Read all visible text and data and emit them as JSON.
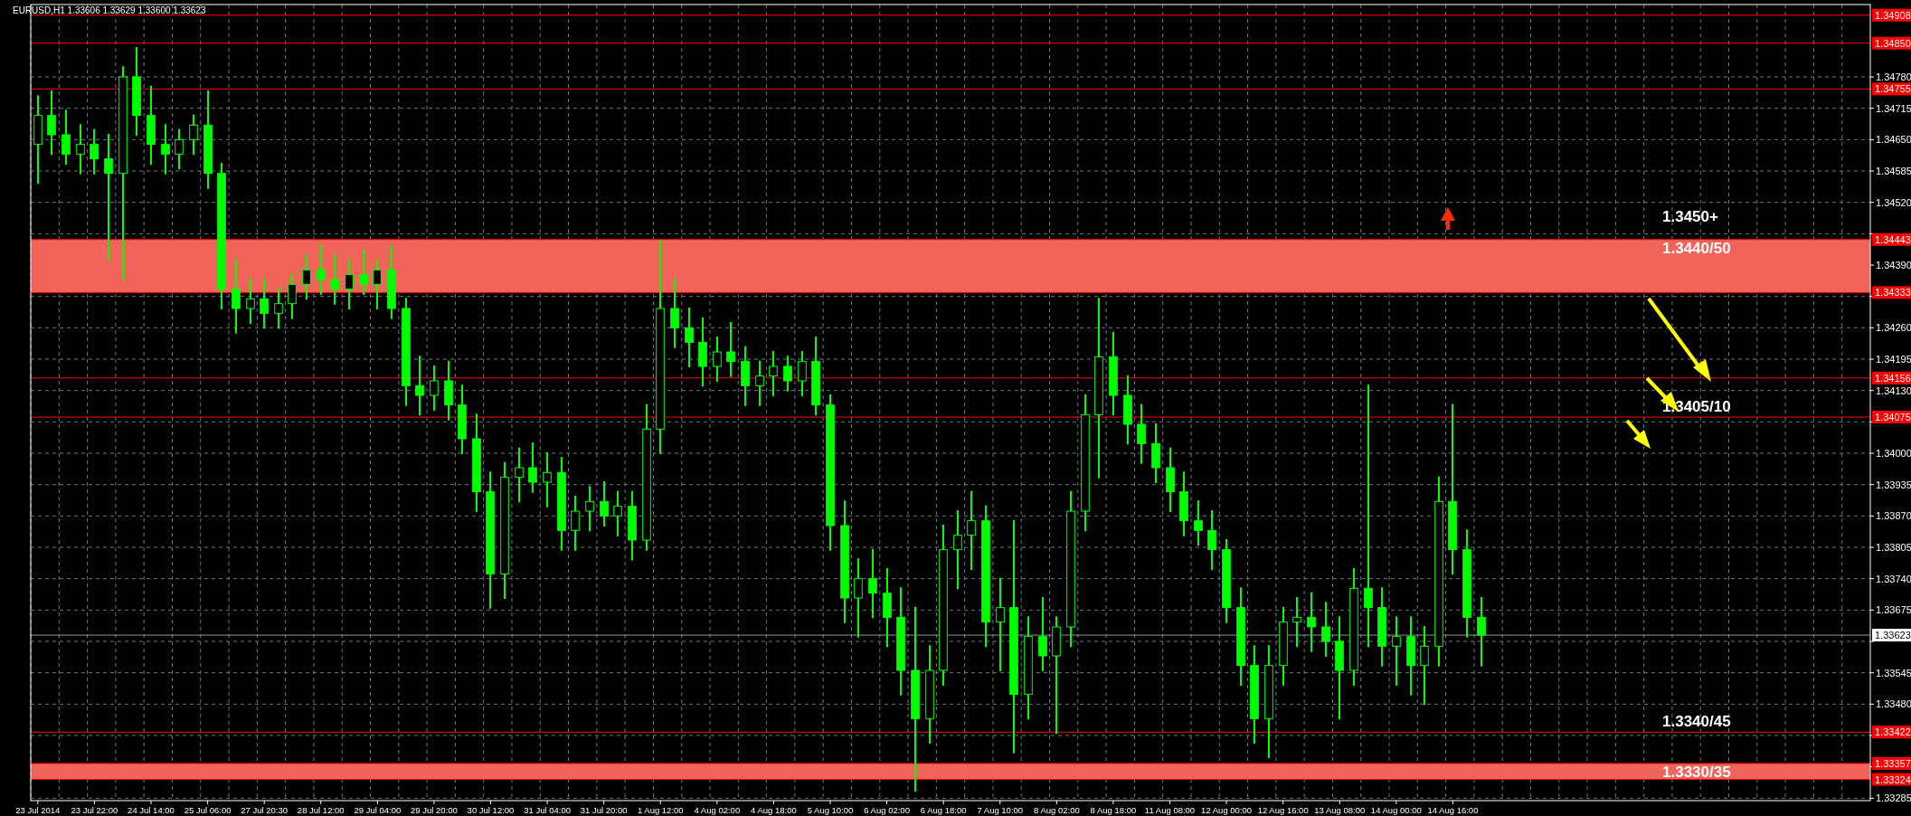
{
  "chart_data": {
    "type": "candlestick",
    "title": "EURUSD,H1  1.33606 1.33629 1.33600 1.33623",
    "categories": [
      "23 Jul 2014",
      null,
      null,
      null,
      "23 Jul 22:00",
      null,
      null,
      null,
      "24 Jul 14:00",
      null,
      null,
      null,
      "25 Jul 06:00",
      null,
      null,
      null,
      "27 Jul 20:30",
      null,
      null,
      null,
      "28 Jul 12:00",
      null,
      null,
      null,
      "29 Jul 04:00",
      null,
      null,
      null,
      "29 Jul 20:00",
      null,
      null,
      null,
      "30 Jul 12:00",
      null,
      null,
      null,
      "31 Jul 04:00",
      null,
      null,
      null,
      "31 Jul 20:00",
      null,
      null,
      null,
      "1 Aug 12:00",
      null,
      null,
      null,
      "4 Aug 02:00",
      null,
      null,
      null,
      "4 Aug 18:00",
      null,
      null,
      null,
      "5 Aug 10:00",
      null,
      null,
      null,
      "6 Aug 02:00",
      null,
      null,
      null,
      "6 Aug 18:00",
      null,
      null,
      null,
      "7 Aug 10:00",
      null,
      null,
      null,
      "8 Aug 02:00",
      null,
      null,
      null,
      "8 Aug 18:00",
      null,
      null,
      null,
      "11 Aug 08:00",
      null,
      null,
      null,
      "12 Aug 00:00",
      null,
      null,
      null,
      "12 Aug 16:00",
      null,
      null,
      null,
      "13 Aug 08:00",
      null,
      null,
      null,
      "14 Aug 00:00",
      null,
      null,
      null,
      "14 Aug 16:00",
      null,
      null,
      null,
      null,
      null,
      null,
      null,
      null,
      null,
      null,
      null,
      null,
      null,
      null,
      null,
      null,
      null,
      null,
      null,
      null,
      null,
      null,
      null,
      null,
      null,
      null,
      null,
      null,
      null
    ],
    "series": [
      {
        "color": "#00ff00",
        "ohlc": [
          [
            1.3464,
            1.3474,
            1.3456,
            1.347
          ],
          [
            1.347,
            1.3475,
            1.3462,
            1.3466
          ],
          [
            1.3466,
            1.3471,
            1.346,
            1.3462
          ],
          [
            1.3462,
            1.3468,
            1.3458,
            1.3464
          ],
          [
            1.3464,
            1.3467,
            1.3458,
            1.3461
          ],
          [
            1.3461,
            1.3466,
            1.344,
            1.3458
          ],
          [
            1.3458,
            1.348,
            1.3436,
            1.3478
          ],
          [
            1.3478,
            1.3484,
            1.3466,
            1.347
          ],
          [
            1.347,
            1.3476,
            1.346,
            1.3464
          ],
          [
            1.3464,
            1.3468,
            1.3458,
            1.3462
          ],
          [
            1.3462,
            1.3467,
            1.3459,
            1.3465
          ],
          [
            1.3465,
            1.347,
            1.3462,
            1.3468
          ],
          [
            1.3468,
            1.3475,
            1.3455,
            1.3458
          ],
          [
            1.3458,
            1.346,
            1.343,
            1.3434
          ],
          [
            1.3434,
            1.344,
            1.3425,
            1.343
          ],
          [
            1.343,
            1.3436,
            1.3427,
            1.3432
          ],
          [
            1.3432,
            1.3436,
            1.3426,
            1.3429
          ],
          [
            1.3429,
            1.3434,
            1.3426,
            1.3431
          ],
          [
            1.3431,
            1.3437,
            1.3428,
            1.3435
          ],
          [
            1.3435,
            1.3441,
            1.3432,
            1.3438
          ],
          [
            1.3438,
            1.3443,
            1.3433,
            1.3436
          ],
          [
            1.3436,
            1.3441,
            1.3431,
            1.3434
          ],
          [
            1.3434,
            1.344,
            1.343,
            1.3437
          ],
          [
            1.3437,
            1.3442,
            1.3433,
            1.3435
          ],
          [
            1.3435,
            1.344,
            1.343,
            1.3438
          ],
          [
            1.3438,
            1.3443,
            1.3428,
            1.343
          ],
          [
            1.343,
            1.3432,
            1.341,
            1.3414
          ],
          [
            1.3414,
            1.342,
            1.3408,
            1.3412
          ],
          [
            1.3412,
            1.3418,
            1.3409,
            1.3415
          ],
          [
            1.3415,
            1.3419,
            1.3407,
            1.341
          ],
          [
            1.341,
            1.3414,
            1.34,
            1.3403
          ],
          [
            1.3403,
            1.3408,
            1.3388,
            1.3392
          ],
          [
            1.3392,
            1.3396,
            1.3368,
            1.3375
          ],
          [
            1.3375,
            1.3398,
            1.337,
            1.3395
          ],
          [
            1.3395,
            1.3401,
            1.339,
            1.3397
          ],
          [
            1.3397,
            1.3402,
            1.3392,
            1.3394
          ],
          [
            1.3394,
            1.34,
            1.3389,
            1.3396
          ],
          [
            1.3396,
            1.3399,
            1.338,
            1.3384
          ],
          [
            1.3384,
            1.3391,
            1.338,
            1.3388
          ],
          [
            1.3388,
            1.3393,
            1.3384,
            1.339
          ],
          [
            1.339,
            1.3394,
            1.3385,
            1.3387
          ],
          [
            1.3387,
            1.3392,
            1.3383,
            1.3389
          ],
          [
            1.3389,
            1.3392,
            1.3378,
            1.3382
          ],
          [
            1.3382,
            1.341,
            1.338,
            1.3405
          ],
          [
            1.3405,
            1.3444,
            1.34,
            1.343
          ],
          [
            1.343,
            1.3436,
            1.3422,
            1.3426
          ],
          [
            1.3426,
            1.343,
            1.3418,
            1.3423
          ],
          [
            1.3423,
            1.3428,
            1.3414,
            1.3418
          ],
          [
            1.3418,
            1.3424,
            1.3415,
            1.3421
          ],
          [
            1.3421,
            1.3427,
            1.3416,
            1.3419
          ],
          [
            1.3419,
            1.3422,
            1.341,
            1.3414
          ],
          [
            1.3414,
            1.3419,
            1.341,
            1.3416
          ],
          [
            1.3416,
            1.3421,
            1.3412,
            1.3418
          ],
          [
            1.3418,
            1.342,
            1.3413,
            1.3415
          ],
          [
            1.3415,
            1.3421,
            1.3412,
            1.3419
          ],
          [
            1.3419,
            1.3424,
            1.3408,
            1.341
          ],
          [
            1.341,
            1.3412,
            1.338,
            1.3385
          ],
          [
            1.3385,
            1.339,
            1.3365,
            1.337
          ],
          [
            1.337,
            1.3378,
            1.3362,
            1.3374
          ],
          [
            1.3374,
            1.338,
            1.3366,
            1.3371
          ],
          [
            1.3371,
            1.3376,
            1.336,
            1.3366
          ],
          [
            1.3366,
            1.3372,
            1.335,
            1.3355
          ],
          [
            1.3355,
            1.3368,
            1.333,
            1.3345
          ],
          [
            1.3345,
            1.336,
            1.334,
            1.3355
          ],
          [
            1.3355,
            1.3385,
            1.3352,
            1.338
          ],
          [
            1.338,
            1.3388,
            1.3372,
            1.3383
          ],
          [
            1.3383,
            1.3392,
            1.3376,
            1.3386
          ],
          [
            1.3386,
            1.3389,
            1.336,
            1.3365
          ],
          [
            1.3365,
            1.3374,
            1.3355,
            1.3368
          ],
          [
            1.3368,
            1.3386,
            1.3338,
            1.335
          ],
          [
            1.335,
            1.3366,
            1.3345,
            1.3362
          ],
          [
            1.3362,
            1.337,
            1.3355,
            1.3358
          ],
          [
            1.3358,
            1.3366,
            1.3342,
            1.3364
          ],
          [
            1.3364,
            1.3392,
            1.336,
            1.3388
          ],
          [
            1.3388,
            1.3412,
            1.3384,
            1.3408
          ],
          [
            1.3408,
            1.3432,
            1.3395,
            1.342
          ],
          [
            1.342,
            1.3425,
            1.3408,
            1.3412
          ],
          [
            1.3412,
            1.3416,
            1.3402,
            1.3406
          ],
          [
            1.3406,
            1.341,
            1.3398,
            1.3402
          ],
          [
            1.3402,
            1.3406,
            1.3394,
            1.3397
          ],
          [
            1.3397,
            1.3401,
            1.3388,
            1.3392
          ],
          [
            1.3392,
            1.3396,
            1.3383,
            1.3386
          ],
          [
            1.3386,
            1.339,
            1.3381,
            1.3384
          ],
          [
            1.3384,
            1.3388,
            1.3376,
            1.338
          ],
          [
            1.338,
            1.3382,
            1.3365,
            1.3368
          ],
          [
            1.3368,
            1.3372,
            1.3352,
            1.3356
          ],
          [
            1.3356,
            1.336,
            1.334,
            1.3345
          ],
          [
            1.3345,
            1.336,
            1.3337,
            1.3356
          ],
          [
            1.3356,
            1.3368,
            1.3352,
            1.3365
          ],
          [
            1.3365,
            1.337,
            1.336,
            1.3366
          ],
          [
            1.3366,
            1.3371,
            1.3359,
            1.3364
          ],
          [
            1.3364,
            1.3369,
            1.3358,
            1.3361
          ],
          [
            1.3361,
            1.3366,
            1.3345,
            1.3355
          ],
          [
            1.3355,
            1.3376,
            1.3352,
            1.3372
          ],
          [
            1.3372,
            1.3414,
            1.336,
            1.3368
          ],
          [
            1.3368,
            1.3372,
            1.3356,
            1.336
          ],
          [
            1.336,
            1.3366,
            1.3352,
            1.3362
          ],
          [
            1.3362,
            1.3366,
            1.335,
            1.3356
          ],
          [
            1.3356,
            1.3364,
            1.3348,
            1.336
          ],
          [
            1.336,
            1.3395,
            1.3356,
            1.339
          ],
          [
            1.339,
            1.341,
            1.3375,
            1.338
          ],
          [
            1.338,
            1.3384,
            1.3362,
            1.3366
          ],
          [
            1.3366,
            1.337,
            1.3356,
            1.33623
          ],
          null,
          null,
          null,
          null,
          null,
          null,
          null,
          null,
          null,
          null,
          null,
          null,
          null,
          null,
          null,
          null,
          null,
          null,
          null,
          null,
          null,
          null,
          null,
          null,
          null,
          null,
          null
        ]
      }
    ],
    "ylim": [
      1.3328,
      1.3493
    ],
    "yticks": [
      1.33285,
      {
        "value": 1.3335,
        "label": null
      },
      {
        "value": 1.33415,
        "label": null
      },
      {
        "value": 1.3348,
        "label": "1.33480"
      },
      1.33545,
      {
        "value": 1.3361,
        "label": null
      },
      1.33675,
      {
        "value": 1.3374,
        "label": "1.33740"
      },
      1.33805,
      {
        "value": 1.3387,
        "label": "1.33870"
      },
      1.33935,
      {
        "value": 1.34,
        "label": "1.34000"
      },
      {
        "value": 1.34065,
        "label": null
      },
      {
        "value": 1.3413,
        "label": "1.34130"
      },
      1.34195,
      {
        "value": 1.3426,
        "label": "1.34260"
      },
      {
        "value": 1.34325,
        "label": null
      },
      {
        "value": 1.3439,
        "label": "1.34390"
      },
      {
        "value": 1.34455,
        "label": null
      },
      {
        "value": 1.3452,
        "label": "1.34520"
      },
      1.34585,
      {
        "value": 1.3465,
        "label": "1.34650"
      },
      1.34715,
      {
        "value": 1.3478,
        "label": "1.34780"
      }
    ],
    "grid": true,
    "ref_lines": [
      {
        "axis": "y",
        "value": 1.34908,
        "label": "1.34908",
        "color": "#ff0000"
      },
      {
        "axis": "y",
        "value": 1.3485,
        "label": "1.34850",
        "color": "#ff0000"
      },
      {
        "axis": "y",
        "value": 1.34755,
        "label": "1.34755",
        "color": "#ff0000"
      },
      {
        "axis": "y",
        "value": 1.34443,
        "label": "1.34443",
        "color": "#ff0000"
      },
      {
        "axis": "y",
        "value": 1.34333,
        "label": "1.34333",
        "color": "#ff0000"
      },
      {
        "axis": "y",
        "value": 1.34156,
        "label": "1.34156",
        "color": "#ff0000"
      },
      {
        "axis": "y",
        "value": 1.34075,
        "label": "1.34075",
        "color": "#ff0000"
      },
      {
        "axis": "y",
        "value": 1.33623,
        "label": "1.33623",
        "color": "#8a93a0"
      },
      {
        "axis": "y",
        "value": 1.33422,
        "label": "1.33422",
        "color": "#ff0000"
      },
      {
        "axis": "y",
        "value": 1.33357,
        "label": "1.33357",
        "color": "#ff0000"
      },
      {
        "axis": "y",
        "value": 1.33324,
        "label": "1.33324",
        "color": "#ff0000"
      }
    ],
    "bands": [
      {
        "axis": "y",
        "from": 1.34333,
        "to": 1.34443,
        "label": "1.3440/50",
        "color": "#f0645a"
      },
      {
        "axis": "y",
        "from": 1.33324,
        "to": 1.33357,
        "label": "1.3330/35",
        "color": "#f0645a"
      }
    ],
    "annotations": [
      "1.3450+",
      {
        "text": "1.3405/10",
        "y": 1.34075
      },
      {
        "text": "1.3340/45",
        "y": 1.33422
      }
    ]
  }
}
